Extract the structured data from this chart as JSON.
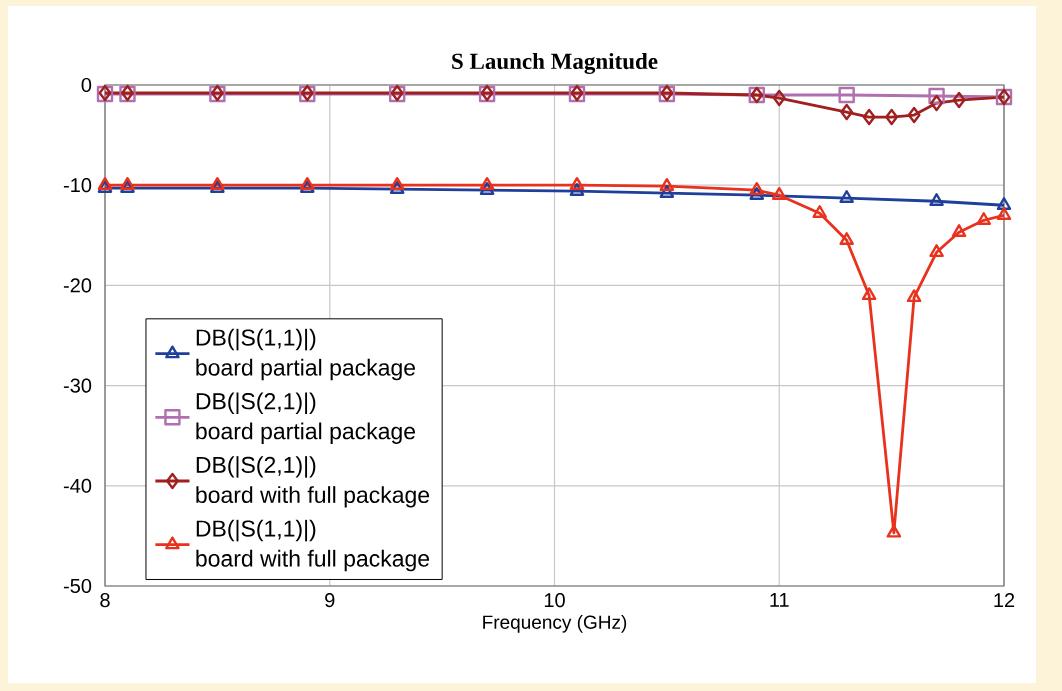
{
  "chart_data": {
    "type": "line",
    "title": "S Launch Magnitude",
    "xlabel": "Frequency (GHz)",
    "xlim": [
      8,
      12
    ],
    "ylim": [
      -50,
      0
    ],
    "xticks": [
      8,
      9,
      10,
      11,
      12
    ],
    "yticks": [
      -50,
      -40,
      -30,
      -20,
      -10,
      0
    ],
    "grid": true,
    "legend": "bottom left",
    "line_style": "solid",
    "series": [
      {
        "name": "DB(|S(1,1)|)\nboard partial package",
        "color": "#1f3f99",
        "marker": "triangle",
        "x": [
          8,
          8.1,
          8.5,
          8.9,
          9.3,
          9.7,
          10.1,
          10.5,
          10.9,
          11.3,
          11.7,
          12
        ],
        "values": [
          -10.3,
          -10.3,
          -10.3,
          -10.3,
          -10.4,
          -10.5,
          -10.6,
          -10.8,
          -11.0,
          -11.3,
          -11.6,
          -12.0
        ]
      },
      {
        "name": "DB(|S(2,1)|)\nboard partial package",
        "color": "#b070b0",
        "marker": "square",
        "x": [
          8,
          8.1,
          8.5,
          8.9,
          9.3,
          9.7,
          10.1,
          10.5,
          10.9,
          11.3,
          11.7,
          12
        ],
        "values": [
          -0.9,
          -0.9,
          -0.9,
          -0.9,
          -0.9,
          -0.9,
          -0.9,
          -0.9,
          -1.0,
          -1.0,
          -1.1,
          -1.2
        ]
      },
      {
        "name": "DB(|S(2,1)|)\nboard with full package",
        "color": "#a02020",
        "marker": "diamond",
        "x": [
          8,
          8.1,
          8.5,
          8.9,
          9.3,
          9.7,
          10.1,
          10.5,
          10.9,
          11.0,
          11.3,
          11.4,
          11.5,
          11.6,
          11.7,
          11.8,
          12
        ],
        "values": [
          -0.8,
          -0.8,
          -0.8,
          -0.8,
          -0.8,
          -0.8,
          -0.8,
          -0.8,
          -1.0,
          -1.3,
          -2.7,
          -3.2,
          -3.2,
          -3.0,
          -1.8,
          -1.5,
          -1.2
        ]
      },
      {
        "name": "DB(|S(1,1)|)\nboard with full package",
        "color": "#e8321e",
        "marker": "triangle",
        "x": [
          8,
          8.1,
          8.5,
          8.9,
          9.3,
          9.7,
          10.1,
          10.5,
          10.9,
          11.0,
          11.18,
          11.3,
          11.4,
          11.51,
          11.6,
          11.7,
          11.8,
          11.91,
          12
        ],
        "values": [
          -10.0,
          -10.0,
          -10.0,
          -10.0,
          -10.0,
          -10.0,
          -10.0,
          -10.1,
          -10.5,
          -11.0,
          -12.8,
          -15.5,
          -21.0,
          -44.7,
          -21.2,
          -16.7,
          -14.7,
          -13.5,
          -13.0
        ]
      }
    ]
  }
}
